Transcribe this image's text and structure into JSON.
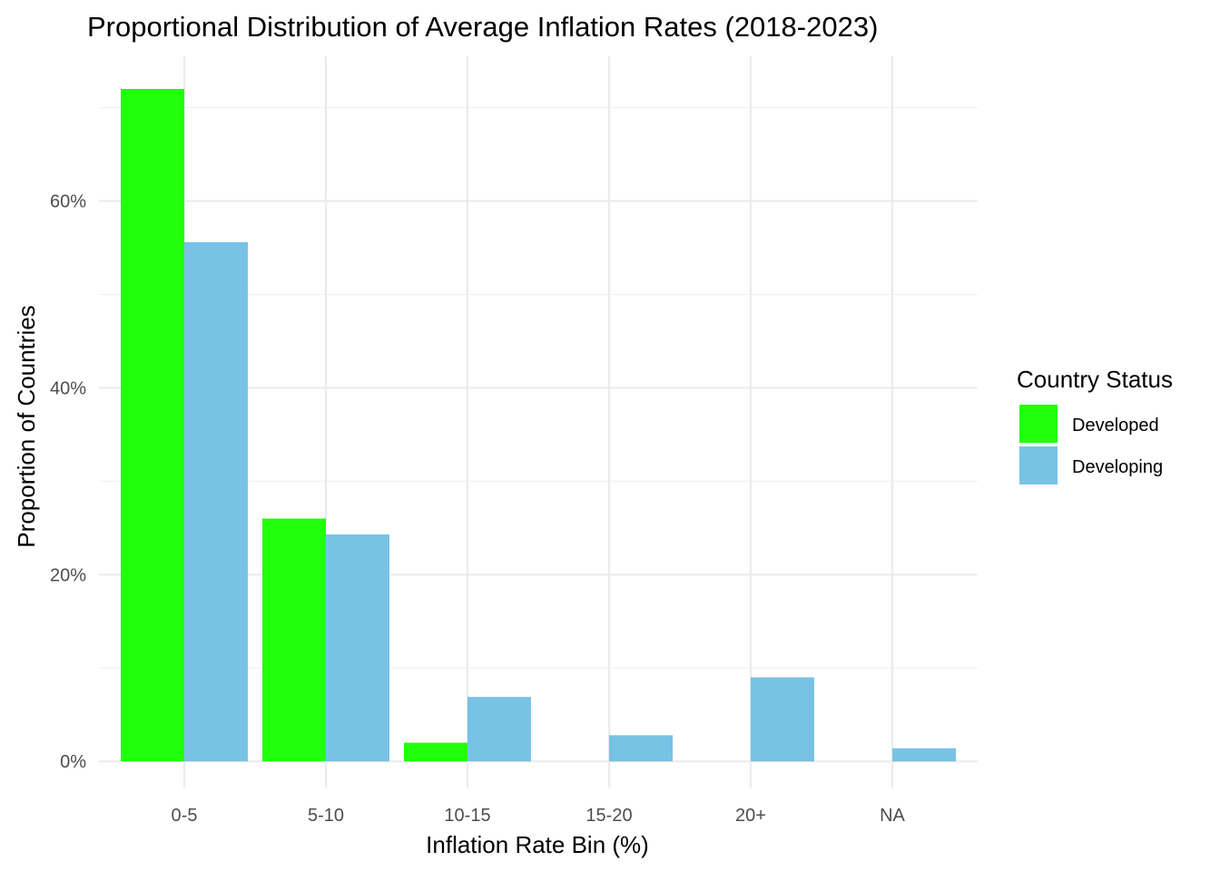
{
  "chart_data": {
    "type": "bar",
    "title": "Proportional Distribution of Average Inflation Rates (2018-2023)",
    "xlabel": "Inflation Rate Bin (%)",
    "ylabel": "Proportion of Countries",
    "categories": [
      "0-5",
      "5-10",
      "10-15",
      "15-20",
      "20+",
      "NA"
    ],
    "series": [
      {
        "name": "Developed",
        "color": "#22ff0a",
        "values": [
          72.0,
          26.0,
          2.0,
          0,
          0,
          0
        ]
      },
      {
        "name": "Developing",
        "color": "#78c2e5",
        "values": [
          55.6,
          24.3,
          6.9,
          2.8,
          9.0,
          1.4
        ]
      }
    ],
    "yticks": [
      0,
      20,
      40,
      60
    ],
    "ytick_labels": [
      "0%",
      "20%",
      "40%",
      "60%"
    ],
    "ylim": [
      -2.8,
      75.5
    ],
    "grid": true,
    "legend": {
      "title": "Country Status",
      "position": "right"
    }
  }
}
